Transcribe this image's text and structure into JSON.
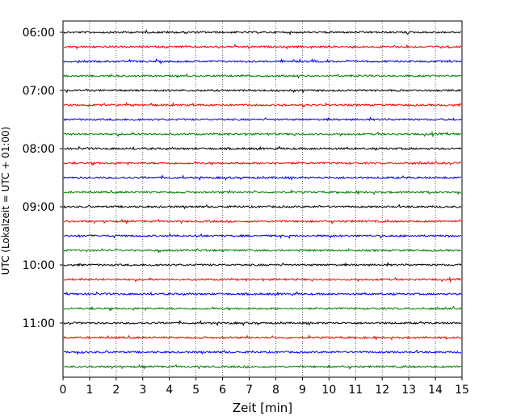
{
  "chart_data": {
    "type": "line",
    "title": "",
    "xlabel": "Zeit  [min]",
    "ylabel": "UTC (Lokalzeit = UTC + 01:00)",
    "xlim": [
      0,
      15
    ],
    "x_ticks": [
      "0",
      "1",
      "2",
      "3",
      "4",
      "5",
      "6",
      "7",
      "8",
      "9",
      "10",
      "11",
      "12",
      "13",
      "14",
      "15"
    ],
    "y_tick_labels": [
      "06:00",
      "07:00",
      "08:00",
      "09:00",
      "10:00",
      "11:00"
    ],
    "grid_x": true,
    "trace_interval_min": 15,
    "trace_colors": [
      "#000000",
      "#ff0000",
      "#0000ff",
      "#008000"
    ],
    "traces": [
      {
        "time": "06:00",
        "color": "#000000"
      },
      {
        "time": "06:15",
        "color": "#ff0000"
      },
      {
        "time": "06:30",
        "color": "#0000ff"
      },
      {
        "time": "06:45",
        "color": "#008000"
      },
      {
        "time": "07:00",
        "color": "#000000"
      },
      {
        "time": "07:15",
        "color": "#ff0000"
      },
      {
        "time": "07:30",
        "color": "#0000ff"
      },
      {
        "time": "07:45",
        "color": "#008000"
      },
      {
        "time": "08:00",
        "color": "#000000"
      },
      {
        "time": "08:15",
        "color": "#ff0000"
      },
      {
        "time": "08:30",
        "color": "#0000ff"
      },
      {
        "time": "08:45",
        "color": "#008000"
      },
      {
        "time": "09:00",
        "color": "#000000"
      },
      {
        "time": "09:15",
        "color": "#ff0000"
      },
      {
        "time": "09:30",
        "color": "#0000ff"
      },
      {
        "time": "09:45",
        "color": "#008000"
      },
      {
        "time": "10:00",
        "color": "#000000"
      },
      {
        "time": "10:15",
        "color": "#ff0000"
      },
      {
        "time": "10:30",
        "color": "#0000ff"
      },
      {
        "time": "10:45",
        "color": "#008000"
      },
      {
        "time": "11:00",
        "color": "#000000"
      },
      {
        "time": "11:15",
        "color": "#ff0000"
      },
      {
        "time": "11:30",
        "color": "#0000ff"
      },
      {
        "time": "11:45",
        "color": "#008000"
      }
    ]
  }
}
